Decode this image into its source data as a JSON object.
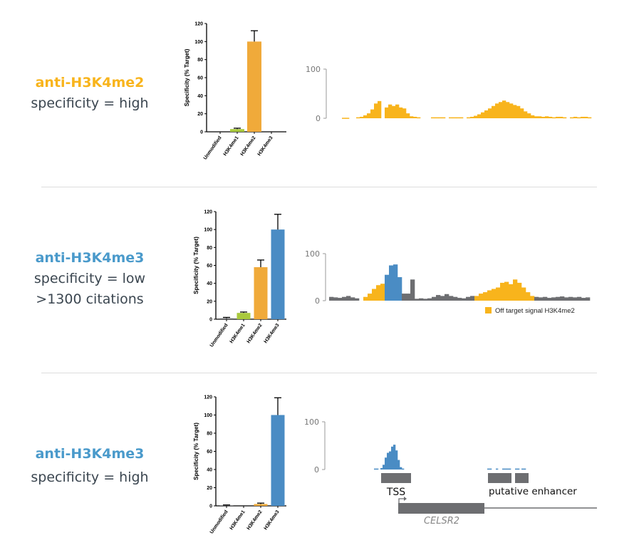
{
  "colors": {
    "yellow": "#F8B41C",
    "orange": "#F0AA3A",
    "green": "#A9C93C",
    "blue": "#4A8CC4",
    "gray": "#6d6e71",
    "title_blue": "#4A9ACB"
  },
  "rows": [
    {
      "title": "anti-H3K4me2",
      "title_color": "#F8B41C",
      "lines": [
        "specificity = high"
      ]
    },
    {
      "title": "anti-H3K4me3",
      "title_color": "#4A9ACB",
      "lines": [
        "specificity = low",
        ">1300 citations"
      ]
    },
    {
      "title": "anti-H3K4me3",
      "title_color": "#4A9ACB",
      "lines": [
        "specificity = high"
      ]
    }
  ],
  "chart_data": [
    {
      "type": "bar",
      "ylabel": "Specificity (% Target)",
      "ylim": [
        0,
        120
      ],
      "yticks": [
        0,
        20,
        40,
        60,
        80,
        100,
        120
      ],
      "categories": [
        "Unmodified",
        "H3K4me1",
        "H3K4me2",
        "H3K4me3"
      ],
      "values": [
        0,
        3,
        100,
        0
      ],
      "errors": [
        0,
        4,
        112,
        0
      ],
      "colors": [
        "orange",
        "green",
        "orange",
        "blue"
      ]
    },
    {
      "type": "bar",
      "ylabel": "Specificity (% Target)",
      "ylim": [
        0,
        120
      ],
      "yticks": [
        0,
        20,
        40,
        60,
        80,
        100,
        120
      ],
      "categories": [
        "Unmodified",
        "H3K4me1",
        "H3K4me2",
        "H3K4me3"
      ],
      "values": [
        1,
        7,
        58,
        100
      ],
      "errors": [
        2,
        8,
        66,
        117
      ],
      "colors": [
        "gray",
        "green",
        "orange",
        "blue"
      ]
    },
    {
      "type": "bar",
      "ylabel": "Specificity (% Target)",
      "ylim": [
        0,
        120
      ],
      "yticks": [
        0,
        20,
        40,
        60,
        80,
        100,
        120
      ],
      "categories": [
        "Unmodified",
        "H3K4me1",
        "H3K4me2",
        "H3K4me3"
      ],
      "values": [
        0.5,
        0,
        2,
        100
      ],
      "errors": [
        1,
        0,
        3,
        119
      ],
      "colors": [
        "gray",
        "green",
        "orange",
        "blue"
      ]
    },
    {
      "type": "area",
      "name": "track-1",
      "ylim": [
        0,
        100
      ],
      "yticks": [
        "0",
        "100"
      ],
      "values": [
        1,
        1,
        null,
        null,
        2,
        3,
        6,
        10,
        18,
        30,
        35,
        null,
        22,
        28,
        25,
        28,
        22,
        20,
        10,
        4,
        3,
        2,
        null,
        null,
        null,
        2,
        2,
        2,
        2,
        null,
        2,
        2,
        2,
        2,
        null,
        2,
        3,
        5,
        8,
        12,
        16,
        20,
        25,
        30,
        33,
        36,
        33,
        30,
        27,
        25,
        20,
        14,
        10,
        6,
        4,
        4,
        3,
        4,
        3,
        2,
        3,
        3,
        2,
        null,
        2,
        3,
        2,
        3,
        3,
        2
      ],
      "colors": "yyyyyyyyyyyyyyyyyyyyyyyyyyyyyyyyyyyyyyyyyyyyyyyyyyyyyyyyyyyyyyyyyyyyyy"
    },
    {
      "type": "area",
      "name": "track-2",
      "ylim": [
        0,
        100
      ],
      "yticks": [
        "0",
        "100"
      ],
      "values": [
        8,
        7,
        6,
        8,
        10,
        7,
        5,
        null,
        8,
        15,
        25,
        33,
        36,
        55,
        75,
        77,
        50,
        15,
        15,
        45,
        4,
        5,
        4,
        5,
        8,
        12,
        10,
        14,
        10,
        8,
        6,
        5,
        8,
        10,
        10,
        15,
        18,
        22,
        25,
        28,
        38,
        40,
        35,
        45,
        38,
        28,
        18,
        10,
        8,
        7,
        8,
        6,
        7,
        8,
        9,
        7,
        8,
        7,
        8,
        6,
        7
      ],
      "colors": "gggggggyyyyyybbbbgggggggggggggggggyyyyyyyyyyyyyyggggggggggggg",
      "legend": "Off target signal H3K4me2"
    },
    {
      "type": "area",
      "name": "track-3",
      "ylim": [
        0,
        100
      ],
      "yticks": [
        "0",
        "100"
      ],
      "values": [
        2,
        2,
        null,
        3,
        10,
        25,
        35,
        38,
        48,
        52,
        40,
        20,
        5,
        2,
        null,
        null,
        null,
        null,
        null,
        null,
        null,
        null,
        null,
        null,
        null,
        null,
        null,
        null,
        null,
        null,
        null,
        null,
        null,
        null,
        null,
        null,
        null,
        null,
        null,
        null,
        null,
        null,
        null,
        null,
        null,
        null,
        null,
        null,
        null,
        null,
        null,
        null,
        null,
        2,
        2,
        null,
        null,
        2,
        null,
        null,
        2,
        2,
        2,
        2,
        null,
        null,
        2,
        2,
        null,
        2,
        2,
        null
      ],
      "colors": "bbbbbbbbbbbbbbbbbbbbbbbbbbbbbbbbbbbbbbbbbbbbbbbbbbbbbbbbbbbbbbbbbbbbbbbb",
      "annotations": {
        "tss": "TSS",
        "enhancer": "putative enhancer",
        "gene": "CELSR2"
      }
    }
  ]
}
